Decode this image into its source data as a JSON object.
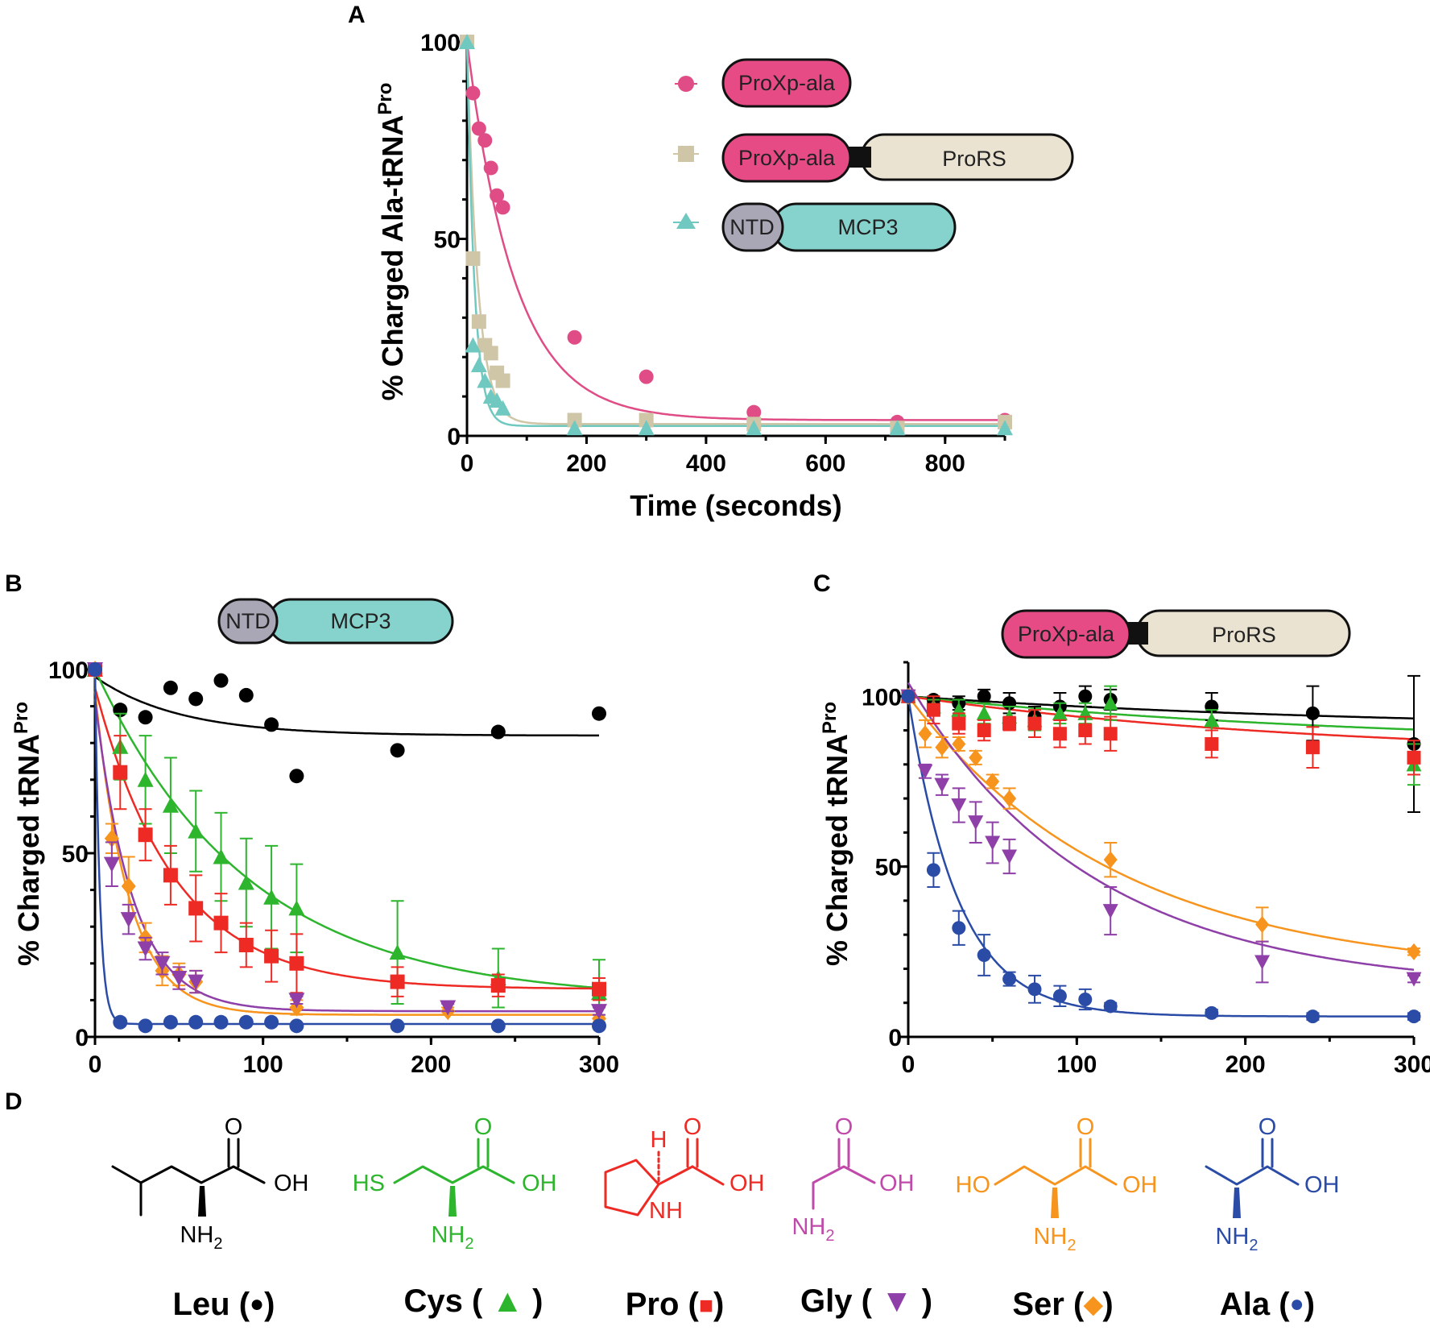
{
  "colors": {
    "leu": "#000000",
    "cys": "#2db52d",
    "pro": "#ee2a24",
    "gly": "#8e3fa8",
    "ser": "#f7941d",
    "ala": "#2a4ba6",
    "proxp": "#e64b86",
    "prors": "#ebe3d1",
    "ntd": "#a9a7b5",
    "mcp3": "#86d2cc",
    "A_proxp": "#e04d86",
    "A_prors": "#cfc6a8",
    "A_mcp3": "#70c9c1"
  },
  "constructs": {
    "proxp_ala": "ProXp-ala",
    "prors": "ProRS",
    "ntd": "NTD",
    "mcp3": "MCP3"
  },
  "chart_data": [
    {
      "panel": "A",
      "type": "scatter",
      "xlabel": "Time (seconds)",
      "ylabel_main": "% Charged Ala-tRNA",
      "ylabel_sup": "Pro",
      "xlim": [
        0,
        900
      ],
      "ylim": [
        0,
        100
      ],
      "xticks": [
        0,
        200,
        400,
        600,
        800
      ],
      "yticks": [
        0,
        50,
        100
      ],
      "legend": [
        "ProXp-ala",
        "ProXp-ala–ProRS",
        "NTD–MCP3"
      ],
      "series": [
        {
          "name": "ProXp-ala",
          "marker": "circle",
          "color_key": "A_proxp",
          "x": [
            0,
            10,
            20,
            30,
            40,
            50,
            60,
            180,
            300,
            480,
            720,
            900
          ],
          "y": [
            100,
            87,
            78,
            75,
            68,
            61,
            58,
            25,
            15,
            6,
            3.5,
            4
          ],
          "fit": {
            "a": 96,
            "k": 0.0125,
            "c": 4
          }
        },
        {
          "name": "ProXp-ala-ProRS",
          "marker": "square",
          "color_key": "A_prors",
          "x": [
            0,
            10,
            20,
            30,
            40,
            50,
            60,
            180,
            300,
            480,
            720,
            900
          ],
          "y": [
            100,
            45,
            29,
            23,
            21,
            16,
            14,
            4,
            4,
            3,
            2,
            3.5
          ],
          "fit": {
            "a": 97,
            "k": 0.055,
            "c": 3
          }
        },
        {
          "name": "NTD-MCP3",
          "marker": "triangle",
          "color_key": "A_mcp3",
          "x": [
            0,
            10,
            20,
            30,
            40,
            50,
            60,
            180,
            300,
            480,
            720,
            900
          ],
          "y": [
            100,
            23,
            18,
            14,
            10,
            9,
            7,
            2,
            2,
            2,
            2,
            2
          ],
          "fit": {
            "a": 98,
            "k": 0.08,
            "c": 2.5
          }
        }
      ]
    },
    {
      "panel": "B",
      "type": "scatter",
      "ylabel_main": "% Charged tRNA",
      "ylabel_sup": "Pro",
      "xlim": [
        0,
        300
      ],
      "ylim": [
        0,
        100
      ],
      "xticks": [
        0,
        100,
        200,
        300
      ],
      "yticks": [
        0,
        50,
        100
      ],
      "series": [
        {
          "name": "Leu",
          "marker": "circle",
          "color_key": "leu",
          "x": [
            0,
            15,
            30,
            45,
            60,
            75,
            90,
            105,
            120,
            180,
            240,
            300
          ],
          "y": [
            100,
            89,
            87,
            95,
            92,
            97,
            93,
            85,
            71,
            78,
            83,
            88
          ],
          "err": [
            0,
            0,
            0,
            0,
            0,
            0,
            0,
            0,
            0,
            0,
            0,
            0
          ],
          "fit": {
            "a": 16,
            "k": 0.02,
            "c": 82
          }
        },
        {
          "name": "Cys",
          "marker": "triangle",
          "color_key": "cys",
          "x": [
            0,
            15,
            30,
            45,
            60,
            75,
            90,
            105,
            120,
            180,
            240,
            300
          ],
          "y": [
            100,
            79,
            70,
            63,
            56,
            49,
            42,
            38,
            35,
            23,
            16,
            12
          ],
          "err": [
            0,
            9,
            12,
            13,
            11,
            12,
            12,
            14,
            12,
            14,
            8,
            9
          ],
          "fit": {
            "a": 90,
            "k": 0.011,
            "c": 10
          }
        },
        {
          "name": "Pro",
          "marker": "square",
          "color_key": "pro",
          "x": [
            0,
            15,
            30,
            45,
            60,
            75,
            90,
            105,
            120,
            180,
            240,
            300
          ],
          "y": [
            100,
            72,
            55,
            44,
            35,
            31,
            25,
            22,
            20,
            15,
            14,
            13
          ],
          "err": [
            0,
            10,
            7,
            8,
            9,
            8,
            6,
            7,
            8,
            4,
            3,
            3
          ],
          "fit": {
            "a": 82,
            "k": 0.021,
            "c": 13
          }
        },
        {
          "name": "Ser",
          "marker": "diamond",
          "color_key": "ser",
          "x": [
            0,
            10,
            20,
            30,
            40,
            50,
            60,
            120,
            210,
            300
          ],
          "y": [
            100,
            54,
            41,
            27,
            18,
            17,
            15,
            8,
            7,
            5
          ],
          "err": [
            0,
            4,
            8,
            4,
            4,
            3,
            3,
            2,
            1,
            1
          ],
          "fit": {
            "a": 88,
            "k": 0.05,
            "c": 6
          }
        },
        {
          "name": "Gly",
          "marker": "invtriangle",
          "color_key": "gly",
          "x": [
            0,
            10,
            20,
            30,
            40,
            50,
            60,
            120,
            210,
            300
          ],
          "y": [
            100,
            47,
            32,
            24,
            20,
            16,
            15,
            10,
            8,
            7
          ],
          "err": [
            0,
            6,
            4,
            3,
            3,
            3,
            3,
            1,
            1,
            1
          ],
          "fit": {
            "a": 85,
            "k": 0.045,
            "c": 7
          }
        },
        {
          "name": "Ala",
          "marker": "circle",
          "color_key": "ala",
          "x": [
            0,
            15,
            30,
            45,
            60,
            75,
            90,
            105,
            120,
            180,
            240,
            300
          ],
          "y": [
            100,
            4,
            3,
            4,
            4,
            4,
            4,
            4,
            3,
            3,
            3,
            3
          ],
          "err": [
            0,
            0,
            0,
            0,
            0,
            0,
            0,
            0,
            0,
            0,
            0,
            0
          ],
          "fit": {
            "a": 96,
            "k": 0.35,
            "c": 3.5
          }
        }
      ]
    },
    {
      "panel": "C",
      "type": "scatter",
      "ylabel_main": "% Charged tRNA",
      "ylabel_sup": "Pro",
      "xlim": [
        0,
        300
      ],
      "ylim": [
        0,
        110
      ],
      "xticks": [
        0,
        100,
        200,
        300
      ],
      "yticks": [
        0,
        50,
        100
      ],
      "series": [
        {
          "name": "Leu",
          "marker": "circle",
          "color_key": "leu",
          "x": [
            0,
            15,
            30,
            45,
            60,
            75,
            90,
            105,
            120,
            180,
            240,
            300
          ],
          "y": [
            100,
            99,
            98,
            100,
            98,
            94,
            97,
            100,
            99,
            97,
            95,
            86
          ],
          "err": [
            0,
            1,
            2,
            2,
            3,
            3,
            4,
            3,
            3,
            4,
            8,
            20
          ],
          "fit": {
            "a": 10,
            "k": 0.0035,
            "c": 90
          }
        },
        {
          "name": "Cys",
          "marker": "triangle",
          "color_key": "cys",
          "x": [
            0,
            15,
            30,
            45,
            60,
            75,
            90,
            105,
            120,
            180,
            300
          ],
          "y": [
            100,
            97,
            96,
            95,
            94,
            93,
            95,
            95,
            98,
            93,
            80
          ],
          "err": [
            0,
            2,
            3,
            3,
            3,
            3,
            3,
            3,
            5,
            3,
            6
          ],
          "fit": {
            "a": 15,
            "k": 0.0035,
            "c": 85
          }
        },
        {
          "name": "Pro",
          "marker": "square",
          "color_key": "pro",
          "x": [
            0,
            15,
            30,
            45,
            60,
            75,
            90,
            105,
            120,
            180,
            240,
            300
          ],
          "y": [
            100,
            96,
            92,
            90,
            92,
            92,
            89,
            90,
            89,
            86,
            85,
            82
          ],
          "err": [
            0,
            4,
            3,
            3,
            2,
            4,
            4,
            4,
            5,
            4,
            6,
            5
          ],
          "fit": {
            "a": 18,
            "k": 0.004,
            "c": 82
          }
        },
        {
          "name": "Ser",
          "marker": "diamond",
          "color_key": "ser",
          "x": [
            0,
            10,
            20,
            30,
            40,
            50,
            60,
            120,
            210,
            300
          ],
          "y": [
            100,
            89,
            85,
            86,
            82,
            75,
            70,
            52,
            33,
            25
          ],
          "err": [
            0,
            4,
            3,
            2,
            2,
            2,
            3,
            5,
            5,
            1
          ],
          "fit": {
            "a": 82,
            "k": 0.008,
            "c": 18
          }
        },
        {
          "name": "Gly",
          "marker": "invtriangle",
          "color_key": "gly",
          "x": [
            0,
            10,
            20,
            30,
            40,
            50,
            60,
            120,
            210,
            300
          ],
          "y": [
            100,
            78,
            74,
            68,
            63,
            57,
            53,
            37,
            22,
            17
          ],
          "err": [
            0,
            2,
            3,
            5,
            6,
            6,
            5,
            7,
            6,
            1
          ],
          "fit": {
            "a": 90,
            "k": 0.0092,
            "c": 14
          }
        },
        {
          "name": "Ala",
          "marker": "circle",
          "color_key": "ala",
          "x": [
            0,
            15,
            30,
            45,
            60,
            75,
            90,
            105,
            120,
            180,
            240,
            300
          ],
          "y": [
            100,
            49,
            32,
            24,
            17,
            14,
            12,
            11,
            9,
            7,
            6,
            6
          ],
          "err": [
            0,
            5,
            5,
            6,
            2,
            4,
            3,
            3,
            1,
            1,
            1,
            1
          ],
          "fit": {
            "a": 94,
            "k": 0.034,
            "c": 6
          }
        }
      ]
    }
  ],
  "panel_d": {
    "label": "D",
    "amino_acids": [
      {
        "name": "Leu",
        "symbol": "●",
        "color_key": "leu"
      },
      {
        "name": "Cys",
        "symbol": "▲",
        "color_key": "cys"
      },
      {
        "name": "Pro",
        "symbol": "■",
        "color_key": "pro"
      },
      {
        "name": "Gly",
        "symbol": "▼",
        "color_key": "gly"
      },
      {
        "name": "Ser",
        "symbol": "◆",
        "color_key": "ser"
      },
      {
        "name": "Ala",
        "symbol": "●",
        "color_key": "ala"
      }
    ],
    "atoms": {
      "O": "O",
      "OH": "OH",
      "NH": "NH",
      "NH2": "NH",
      "sub2": "2",
      "HS": "HS",
      "HO": "HO",
      "H": "H"
    }
  }
}
